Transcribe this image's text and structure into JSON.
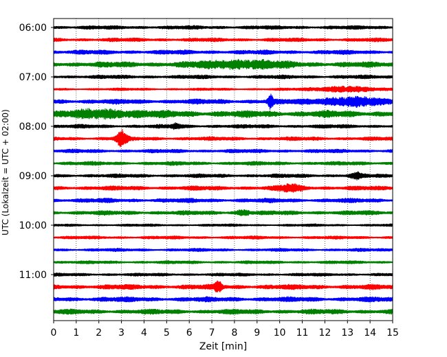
{
  "chart_data": {
    "type": "line",
    "title": "",
    "xlabel": "Zeit  [min]",
    "ylabel": "UTC (Lokalzeit = UTC + 02:00)",
    "xlim": [
      0,
      15
    ],
    "x_ticks": [
      "0",
      "1",
      "2",
      "3",
      "4",
      "5",
      "6",
      "7",
      "8",
      "9",
      "10",
      "11",
      "12",
      "13",
      "14",
      "15"
    ],
    "y_tick_labels": [
      "06:00",
      "07:00",
      "08:00",
      "09:00",
      "10:00",
      "11:00"
    ],
    "row_minutes": 15,
    "start_time": "06:00",
    "grid": "vertical dotted",
    "colors": [
      "#000000",
      "#ff0000",
      "#0000ff",
      "#008000"
    ],
    "rows": [
      {
        "start": "06:00",
        "color": "#000000",
        "amp": 0.3,
        "events": []
      },
      {
        "start": "06:15",
        "color": "#ff0000",
        "amp": 0.3,
        "events": []
      },
      {
        "start": "06:30",
        "color": "#0000ff",
        "amp": 0.35,
        "events": []
      },
      {
        "start": "06:45",
        "color": "#008000",
        "amp": 0.45,
        "events": [
          {
            "t": 8.3,
            "amp": 0.6,
            "width": 3.5
          }
        ]
      },
      {
        "start": "07:00",
        "color": "#000000",
        "amp": 0.3,
        "events": []
      },
      {
        "start": "07:15",
        "color": "#ff0000",
        "amp": 0.2,
        "events": [
          {
            "t": 12.8,
            "amp": 0.45,
            "width": 2.5
          }
        ]
      },
      {
        "start": "07:30",
        "color": "#0000ff",
        "amp": 0.4,
        "events": [
          {
            "t": 9.6,
            "amp": 1.0,
            "width": 0.25
          },
          {
            "t": 13.0,
            "amp": 0.6,
            "width": 3.0
          }
        ]
      },
      {
        "start": "07:45",
        "color": "#008000",
        "amp": 0.55,
        "events": [
          {
            "t": 2.5,
            "amp": 0.5,
            "width": 3.0
          }
        ]
      },
      {
        "start": "08:00",
        "color": "#000000",
        "amp": 0.3,
        "events": [
          {
            "t": 5.4,
            "amp": 0.4,
            "width": 0.4
          }
        ]
      },
      {
        "start": "08:15",
        "color": "#ff0000",
        "amp": 0.3,
        "events": [
          {
            "t": 3.0,
            "amp": 1.4,
            "width": 0.45
          }
        ]
      },
      {
        "start": "08:30",
        "color": "#0000ff",
        "amp": 0.3,
        "events": []
      },
      {
        "start": "08:45",
        "color": "#008000",
        "amp": 0.3,
        "events": []
      },
      {
        "start": "09:00",
        "color": "#000000",
        "amp": 0.3,
        "events": [
          {
            "t": 13.4,
            "amp": 0.4,
            "width": 0.6
          }
        ]
      },
      {
        "start": "09:15",
        "color": "#ff0000",
        "amp": 0.35,
        "events": [
          {
            "t": 10.5,
            "amp": 0.5,
            "width": 1.0
          }
        ]
      },
      {
        "start": "09:30",
        "color": "#0000ff",
        "amp": 0.35,
        "events": []
      },
      {
        "start": "09:45",
        "color": "#008000",
        "amp": 0.35,
        "events": [
          {
            "t": 8.4,
            "amp": 0.4,
            "width": 0.6
          }
        ]
      },
      {
        "start": "10:00",
        "color": "#000000",
        "amp": 0.2,
        "events": []
      },
      {
        "start": "10:15",
        "color": "#ff0000",
        "amp": 0.25,
        "events": []
      },
      {
        "start": "10:30",
        "color": "#0000ff",
        "amp": 0.25,
        "events": []
      },
      {
        "start": "10:45",
        "color": "#008000",
        "amp": 0.25,
        "events": []
      },
      {
        "start": "11:00",
        "color": "#000000",
        "amp": 0.25,
        "events": []
      },
      {
        "start": "11:15",
        "color": "#ff0000",
        "amp": 0.4,
        "events": [
          {
            "t": 7.3,
            "amp": 0.9,
            "width": 0.3
          }
        ]
      },
      {
        "start": "11:30",
        "color": "#0000ff",
        "amp": 0.4,
        "events": []
      },
      {
        "start": "11:45",
        "color": "#008000",
        "amp": 0.4,
        "events": []
      }
    ]
  }
}
